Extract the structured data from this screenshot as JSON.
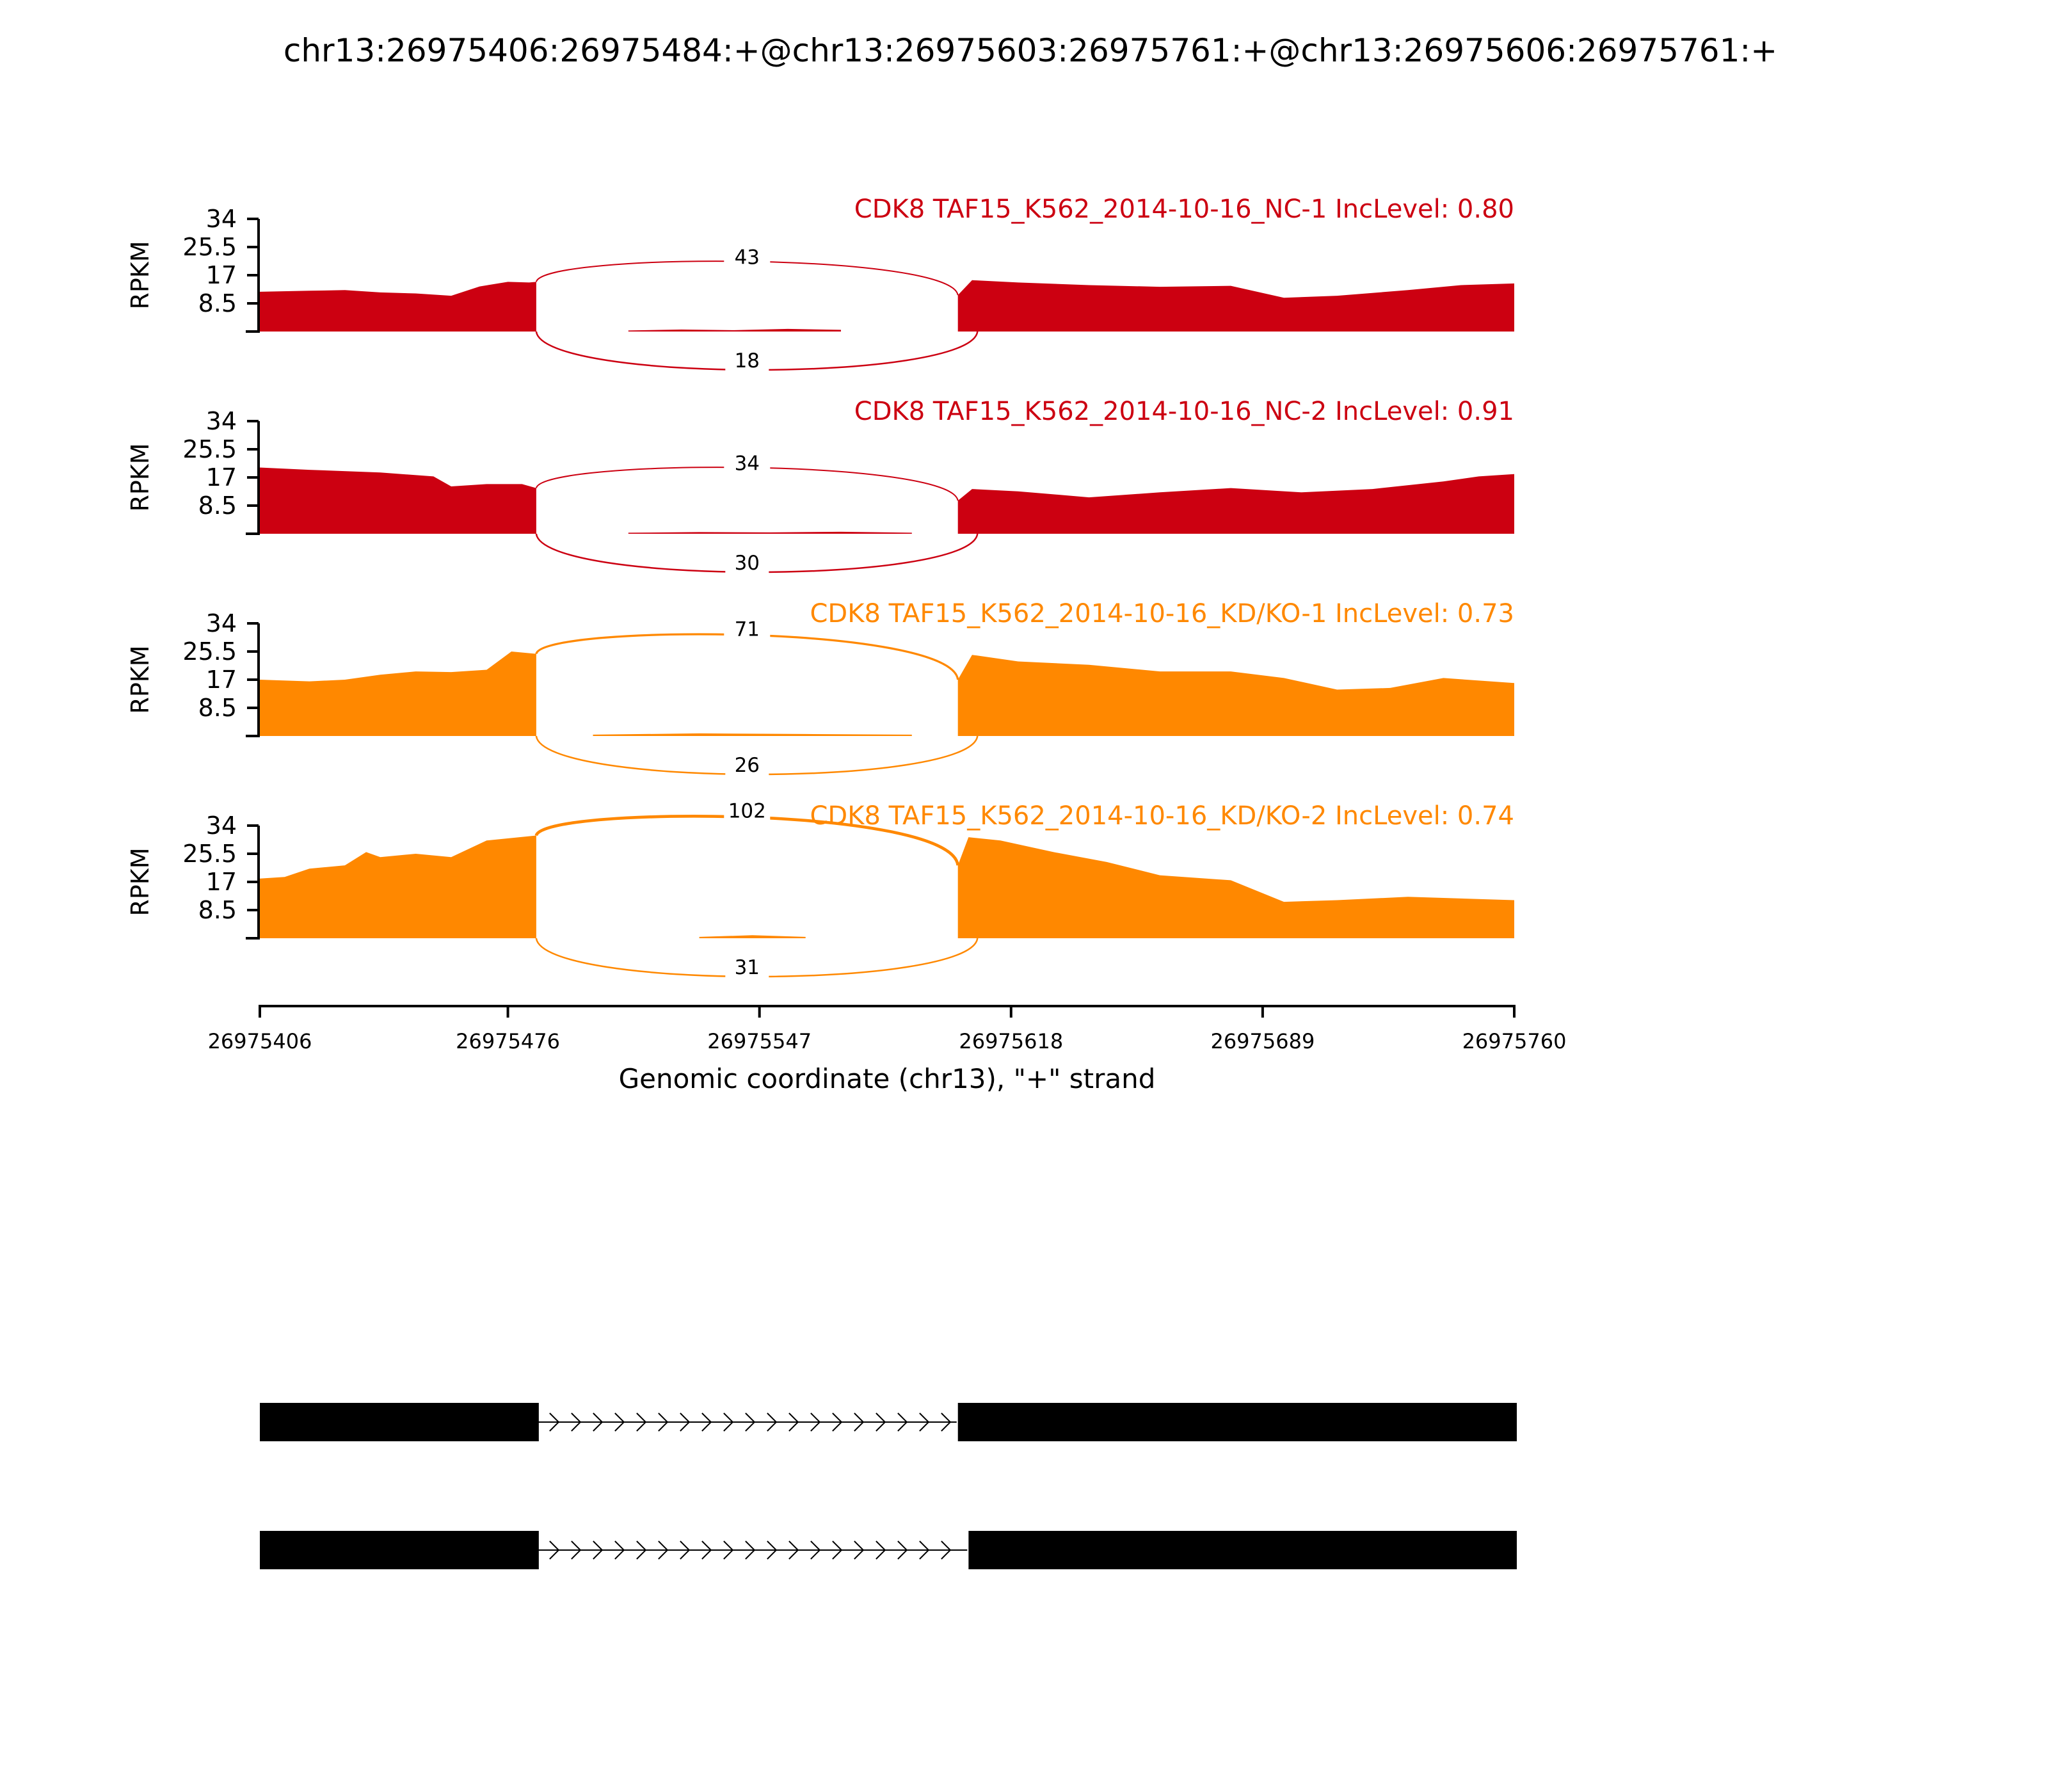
{
  "chart_data": {
    "type": "area",
    "title": "chr13:26975406:26975484:+@chr13:26975603:26975761:+@chr13:26975606:26975761:+",
    "ylabel": "RPKM",
    "xlabel": "Genomic coordinate (chr13), \"+\" strand",
    "xlim": [
      26975406,
      26975760
    ],
    "x_ticks": [
      "26975406",
      "26975476",
      "26975547",
      "26975618",
      "26975689",
      "26975760"
    ],
    "ylim": [
      0,
      34
    ],
    "y_ticks": [
      "8.5",
      "17",
      "25.5",
      "34"
    ],
    "exon1": [
      26975406,
      26975484
    ],
    "intron": [
      26975484,
      26975603
    ],
    "exon2": [
      26975603,
      26975760
    ],
    "tracks": [
      {
        "label": "CDK8 TAF15_K562_2014-10-16_NC-1 IncLevel: 0.80",
        "color": "#cc0011",
        "inclusion_junction": "43",
        "skipping_junction": "18",
        "exon1_x": [
          26975406,
          26975420,
          26975430,
          26975440,
          26975450,
          26975460,
          26975468,
          26975476,
          26975482,
          26975484
        ],
        "exon1_y": [
          12,
          12.3,
          12.5,
          11.8,
          11.5,
          10.8,
          13.6,
          15,
          14.8,
          15
        ],
        "intron_x": [
          26975510,
          26975525,
          26975540,
          26975555,
          26975570
        ],
        "intron_y": [
          0.3,
          0.6,
          0.4,
          0.8,
          0.5
        ],
        "exon2_x": [
          26975603,
          26975607,
          26975620,
          26975640,
          26975660,
          26975680,
          26975695,
          26975710,
          26975730,
          26975745,
          26975760
        ],
        "exon2_y": [
          11,
          15.5,
          14.8,
          14,
          13.5,
          13.8,
          10.2,
          10.8,
          12.5,
          14,
          14.5
        ]
      },
      {
        "label": "CDK8 TAF15_K562_2014-10-16_NC-2 IncLevel: 0.91",
        "color": "#cc0011",
        "inclusion_junction": "34",
        "skipping_junction": "30",
        "exon1_x": [
          26975406,
          26975420,
          26975440,
          26975455,
          26975460,
          26975470,
          26975480,
          26975484
        ],
        "exon1_y": [
          20,
          19.3,
          18.5,
          17.3,
          14.3,
          15,
          15,
          13.8
        ],
        "intron_x": [
          26975510,
          26975530,
          26975550,
          26975570,
          26975590
        ],
        "intron_y": [
          0.3,
          0.5,
          0.4,
          0.6,
          0.3
        ],
        "exon2_x": [
          26975603,
          26975607,
          26975620,
          26975640,
          26975660,
          26975680,
          26975700,
          26975720,
          26975740,
          26975750,
          26975760
        ],
        "exon2_y": [
          10,
          13.5,
          12.8,
          11,
          12.5,
          13.8,
          12.5,
          13.5,
          15.8,
          17.3,
          18
        ]
      },
      {
        "label": "CDK8 TAF15_K562_2014-10-16_KD/KO-1 IncLevel: 0.73",
        "color": "#ff8800",
        "inclusion_junction": "71",
        "skipping_junction": "26",
        "exon1_x": [
          26975406,
          26975420,
          26975430,
          26975440,
          26975450,
          26975460,
          26975470,
          26975477,
          26975484
        ],
        "exon1_y": [
          17,
          16.5,
          17,
          18.5,
          19.5,
          19.3,
          20,
          25.5,
          24.8
        ],
        "intron_x": [
          26975500,
          26975530,
          26975560,
          26975590
        ],
        "intron_y": [
          0.4,
          0.8,
          0.6,
          0.4
        ],
        "exon2_x": [
          26975603,
          26975607,
          26975620,
          26975640,
          26975660,
          26975680,
          26975695,
          26975710,
          26975725,
          26975740,
          26975760
        ],
        "exon2_y": [
          17,
          24.5,
          22.5,
          21.5,
          19.5,
          19.5,
          17.5,
          14,
          14.5,
          17.5,
          16
        ]
      },
      {
        "label": "CDK8 TAF15_K562_2014-10-16_KD/KO-2 IncLevel: 0.74",
        "color": "#ff8800",
        "inclusion_junction": "102",
        "skipping_junction": "31",
        "exon1_x": [
          26975406,
          26975413,
          26975420,
          26975430,
          26975436,
          26975440,
          26975450,
          26975460,
          26975470,
          26975484
        ],
        "exon1_y": [
          18,
          18.5,
          21,
          22,
          26,
          24.5,
          25.5,
          24.5,
          29.5,
          31
        ],
        "intron_x": [
          26975530,
          26975545,
          26975560
        ],
        "intron_y": [
          0.4,
          0.9,
          0.4
        ],
        "exon2_x": [
          26975603,
          26975606,
          26975615,
          26975630,
          26975645,
          26975660,
          26975680,
          26975695,
          26975710,
          26975730,
          26975760
        ],
        "exon2_y": [
          22,
          30.5,
          29.5,
          26,
          23,
          19,
          17.5,
          11,
          11.5,
          12.5,
          11.5
        ]
      }
    ],
    "isoforms": [
      {
        "exons": [
          [
            26975406,
            26975484
          ],
          [
            26975603,
            26975760
          ]
        ]
      },
      {
        "exons": [
          [
            26975406,
            26975484
          ],
          [
            26975606,
            26975760
          ]
        ]
      }
    ]
  }
}
